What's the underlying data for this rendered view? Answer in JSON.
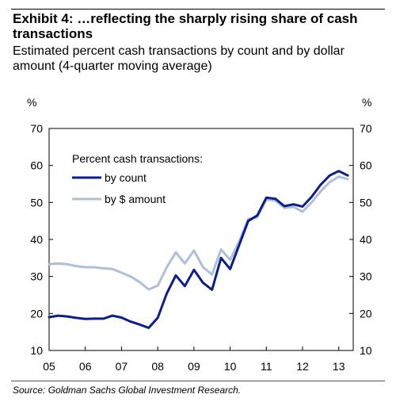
{
  "title_lines": [
    "Exhibit 4: …reflecting the sharply rising share of cash",
    "transactions"
  ],
  "subtitle_lines": [
    "Estimated percent cash transactions by count and by dollar",
    "amount (4-quarter moving average)"
  ],
  "source": "Source: Goldman Sachs Global Investment Research.",
  "chart_data": {
    "type": "line",
    "y_unit_left": "%",
    "y_unit_right": "%",
    "ylim": [
      10,
      70
    ],
    "yticks": [
      10,
      20,
      30,
      40,
      50,
      60,
      70
    ],
    "xlim": [
      2005,
      2013.4
    ],
    "xticks": [
      {
        "label": "05",
        "value": 2005
      },
      {
        "label": "06",
        "value": 2006
      },
      {
        "label": "07",
        "value": 2007
      },
      {
        "label": "08",
        "value": 2008
      },
      {
        "label": "09",
        "value": 2009
      },
      {
        "label": "10",
        "value": 2010
      },
      {
        "label": "11",
        "value": 2011
      },
      {
        "label": "12",
        "value": 2012
      },
      {
        "label": "13",
        "value": 2013
      }
    ],
    "grid": false,
    "legend": {
      "title": "Percent cash transactions:",
      "position": "top-left"
    },
    "series": [
      {
        "name": "by count",
        "color": "#0b1f8c",
        "points": [
          [
            2005.0,
            19.0
          ],
          [
            2005.25,
            19.4
          ],
          [
            2005.5,
            19.2
          ],
          [
            2005.75,
            18.8
          ],
          [
            2006.0,
            18.5
          ],
          [
            2006.25,
            18.6
          ],
          [
            2006.5,
            18.6
          ],
          [
            2006.75,
            19.4
          ],
          [
            2007.0,
            18.9
          ],
          [
            2007.25,
            17.8
          ],
          [
            2007.5,
            17.0
          ],
          [
            2007.75,
            16.1
          ],
          [
            2008.0,
            18.8
          ],
          [
            2008.25,
            25.4
          ],
          [
            2008.5,
            30.3
          ],
          [
            2008.75,
            27.4
          ],
          [
            2009.0,
            31.8
          ],
          [
            2009.25,
            28.3
          ],
          [
            2009.5,
            26.4
          ],
          [
            2009.75,
            35.0
          ],
          [
            2010.0,
            32.0
          ],
          [
            2010.25,
            38.5
          ],
          [
            2010.5,
            45.0
          ],
          [
            2010.75,
            46.5
          ],
          [
            2011.0,
            51.3
          ],
          [
            2011.25,
            51.0
          ],
          [
            2011.5,
            49.0
          ],
          [
            2011.75,
            49.5
          ],
          [
            2012.0,
            48.9
          ],
          [
            2012.25,
            51.5
          ],
          [
            2012.5,
            54.8
          ],
          [
            2012.75,
            57.3
          ],
          [
            2013.0,
            58.5
          ],
          [
            2013.25,
            57.3
          ]
        ]
      },
      {
        "name": "by $ amount",
        "color": "#aebfdc",
        "points": [
          [
            2005.0,
            33.3
          ],
          [
            2005.25,
            33.5
          ],
          [
            2005.5,
            33.3
          ],
          [
            2005.75,
            32.8
          ],
          [
            2006.0,
            32.5
          ],
          [
            2006.25,
            32.5
          ],
          [
            2006.5,
            32.2
          ],
          [
            2006.75,
            32.0
          ],
          [
            2007.0,
            31.0
          ],
          [
            2007.25,
            30.0
          ],
          [
            2007.5,
            28.5
          ],
          [
            2007.75,
            26.5
          ],
          [
            2008.0,
            27.5
          ],
          [
            2008.25,
            32.5
          ],
          [
            2008.5,
            36.5
          ],
          [
            2008.75,
            33.5
          ],
          [
            2009.0,
            37.0
          ],
          [
            2009.25,
            32.5
          ],
          [
            2009.5,
            30.5
          ],
          [
            2009.75,
            37.3
          ],
          [
            2010.0,
            34.5
          ],
          [
            2010.25,
            39.5
          ],
          [
            2010.5,
            45.5
          ],
          [
            2010.75,
            46.0
          ],
          [
            2011.0,
            50.8
          ],
          [
            2011.25,
            50.5
          ],
          [
            2011.5,
            48.5
          ],
          [
            2011.75,
            48.8
          ],
          [
            2012.0,
            47.5
          ],
          [
            2012.25,
            50.0
          ],
          [
            2012.5,
            53.0
          ],
          [
            2012.75,
            55.5
          ],
          [
            2013.0,
            57.0
          ],
          [
            2013.25,
            56.3
          ]
        ]
      }
    ]
  }
}
